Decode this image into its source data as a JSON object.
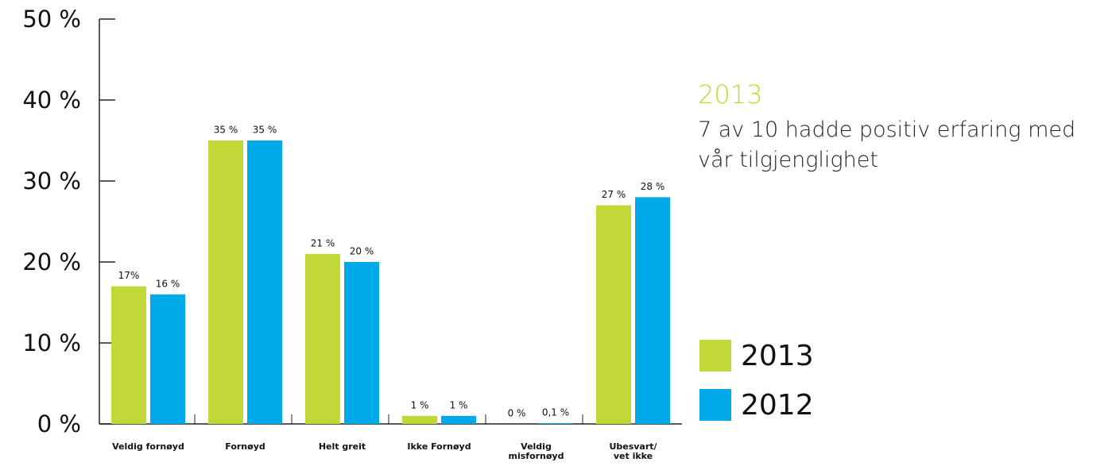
{
  "chart_data": {
    "type": "bar",
    "categories": [
      "Veldig fornøyd",
      "Fornøyd",
      "Helt greit",
      "Ikke Fornøyd",
      "Veldig\nmisfornøyd",
      "Ubesvart/\nvet ikke"
    ],
    "series": [
      {
        "name": "2013",
        "color": "#c2d839",
        "values": [
          17,
          35,
          21,
          1,
          0,
          27
        ],
        "value_labels": [
          "17%",
          "35 %",
          "21 %",
          "1 %",
          "0  %",
          "27 %"
        ]
      },
      {
        "name": "2012",
        "color": "#00a9e8",
        "values": [
          16,
          35,
          20,
          1,
          0.1,
          28
        ],
        "value_labels": [
          "16 %",
          "35 %",
          "20 %",
          "1 %",
          "0,1 %",
          "28 %"
        ]
      }
    ],
    "ylim": [
      0,
      50
    ],
    "yticks": [
      {
        "value": 0,
        "label": "0 %"
      },
      {
        "value": 10,
        "label": "10 %"
      },
      {
        "value": 20,
        "label": "20 %"
      },
      {
        "value": 30,
        "label": "30 %"
      },
      {
        "value": 40,
        "label": "40 %"
      },
      {
        "value": 50,
        "label": "50 %"
      }
    ],
    "annotation": {
      "heading": "2013",
      "text": "7 av 10 hadde positiv erfaring med vår tilgjenglighet"
    },
    "legend": "right"
  }
}
